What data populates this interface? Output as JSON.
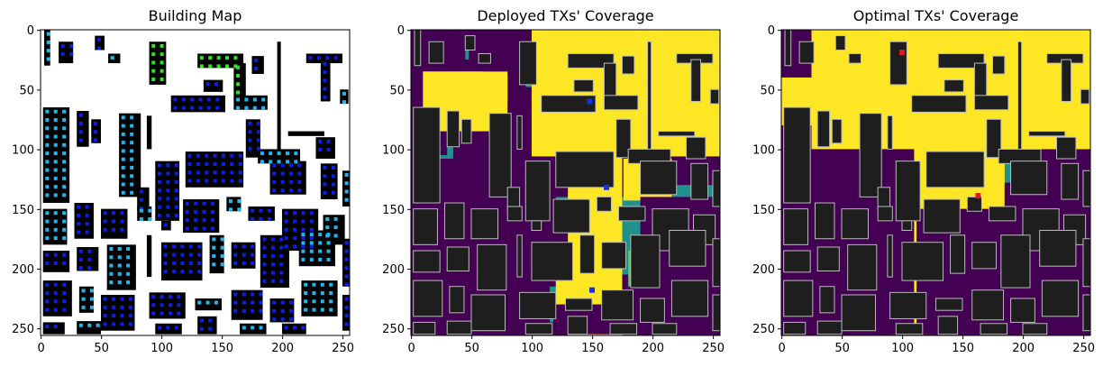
{
  "chart_data": [
    {
      "type": "heatmap",
      "title": "Building Map",
      "xlim": [
        0,
        255
      ],
      "ylim": [
        255,
        0
      ],
      "xticks": [
        0,
        50,
        100,
        150,
        200,
        250
      ],
      "yticks": [
        0,
        50,
        100,
        150,
        200,
        250
      ],
      "colors": {
        "background": "#ffffff",
        "building": "#000000",
        "tx_dark": "#0b1fe6",
        "tx_light": "#1fb8ee",
        "tx_green": "#2ee61f"
      }
    },
    {
      "type": "heatmap",
      "title": "Deployed TXs' Coverage",
      "xlim": [
        0,
        255
      ],
      "ylim": [
        255,
        0
      ],
      "xticks": [
        0,
        50,
        100,
        150,
        200,
        250
      ],
      "yticks": [
        0,
        50,
        100,
        150,
        200,
        250
      ],
      "tx_points": [
        [
          148,
          60
        ],
        [
          162,
          132
        ],
        [
          150,
          218
        ]
      ],
      "colors": {
        "low": "#440154",
        "mid_low": "#21918c",
        "mid_high": "#5ec962",
        "high": "#fde725",
        "building": "#1e1e1e",
        "tx": "#1a2fe0"
      }
    },
    {
      "type": "heatmap",
      "title": "Optimal TXs' Coverage",
      "xlim": [
        0,
        255
      ],
      "ylim": [
        255,
        0
      ],
      "xticks": [
        0,
        50,
        100,
        150,
        200,
        250
      ],
      "yticks": [
        0,
        50,
        100,
        150,
        200,
        250
      ],
      "tx_points": [
        [
          100,
          19
        ],
        [
          163,
          139
        ]
      ],
      "colors": {
        "low": "#440154",
        "mid_low": "#21918c",
        "mid_high": "#5ec962",
        "high": "#fde725",
        "building": "#1e1e1e",
        "tx": "#e31a1c"
      }
    }
  ]
}
